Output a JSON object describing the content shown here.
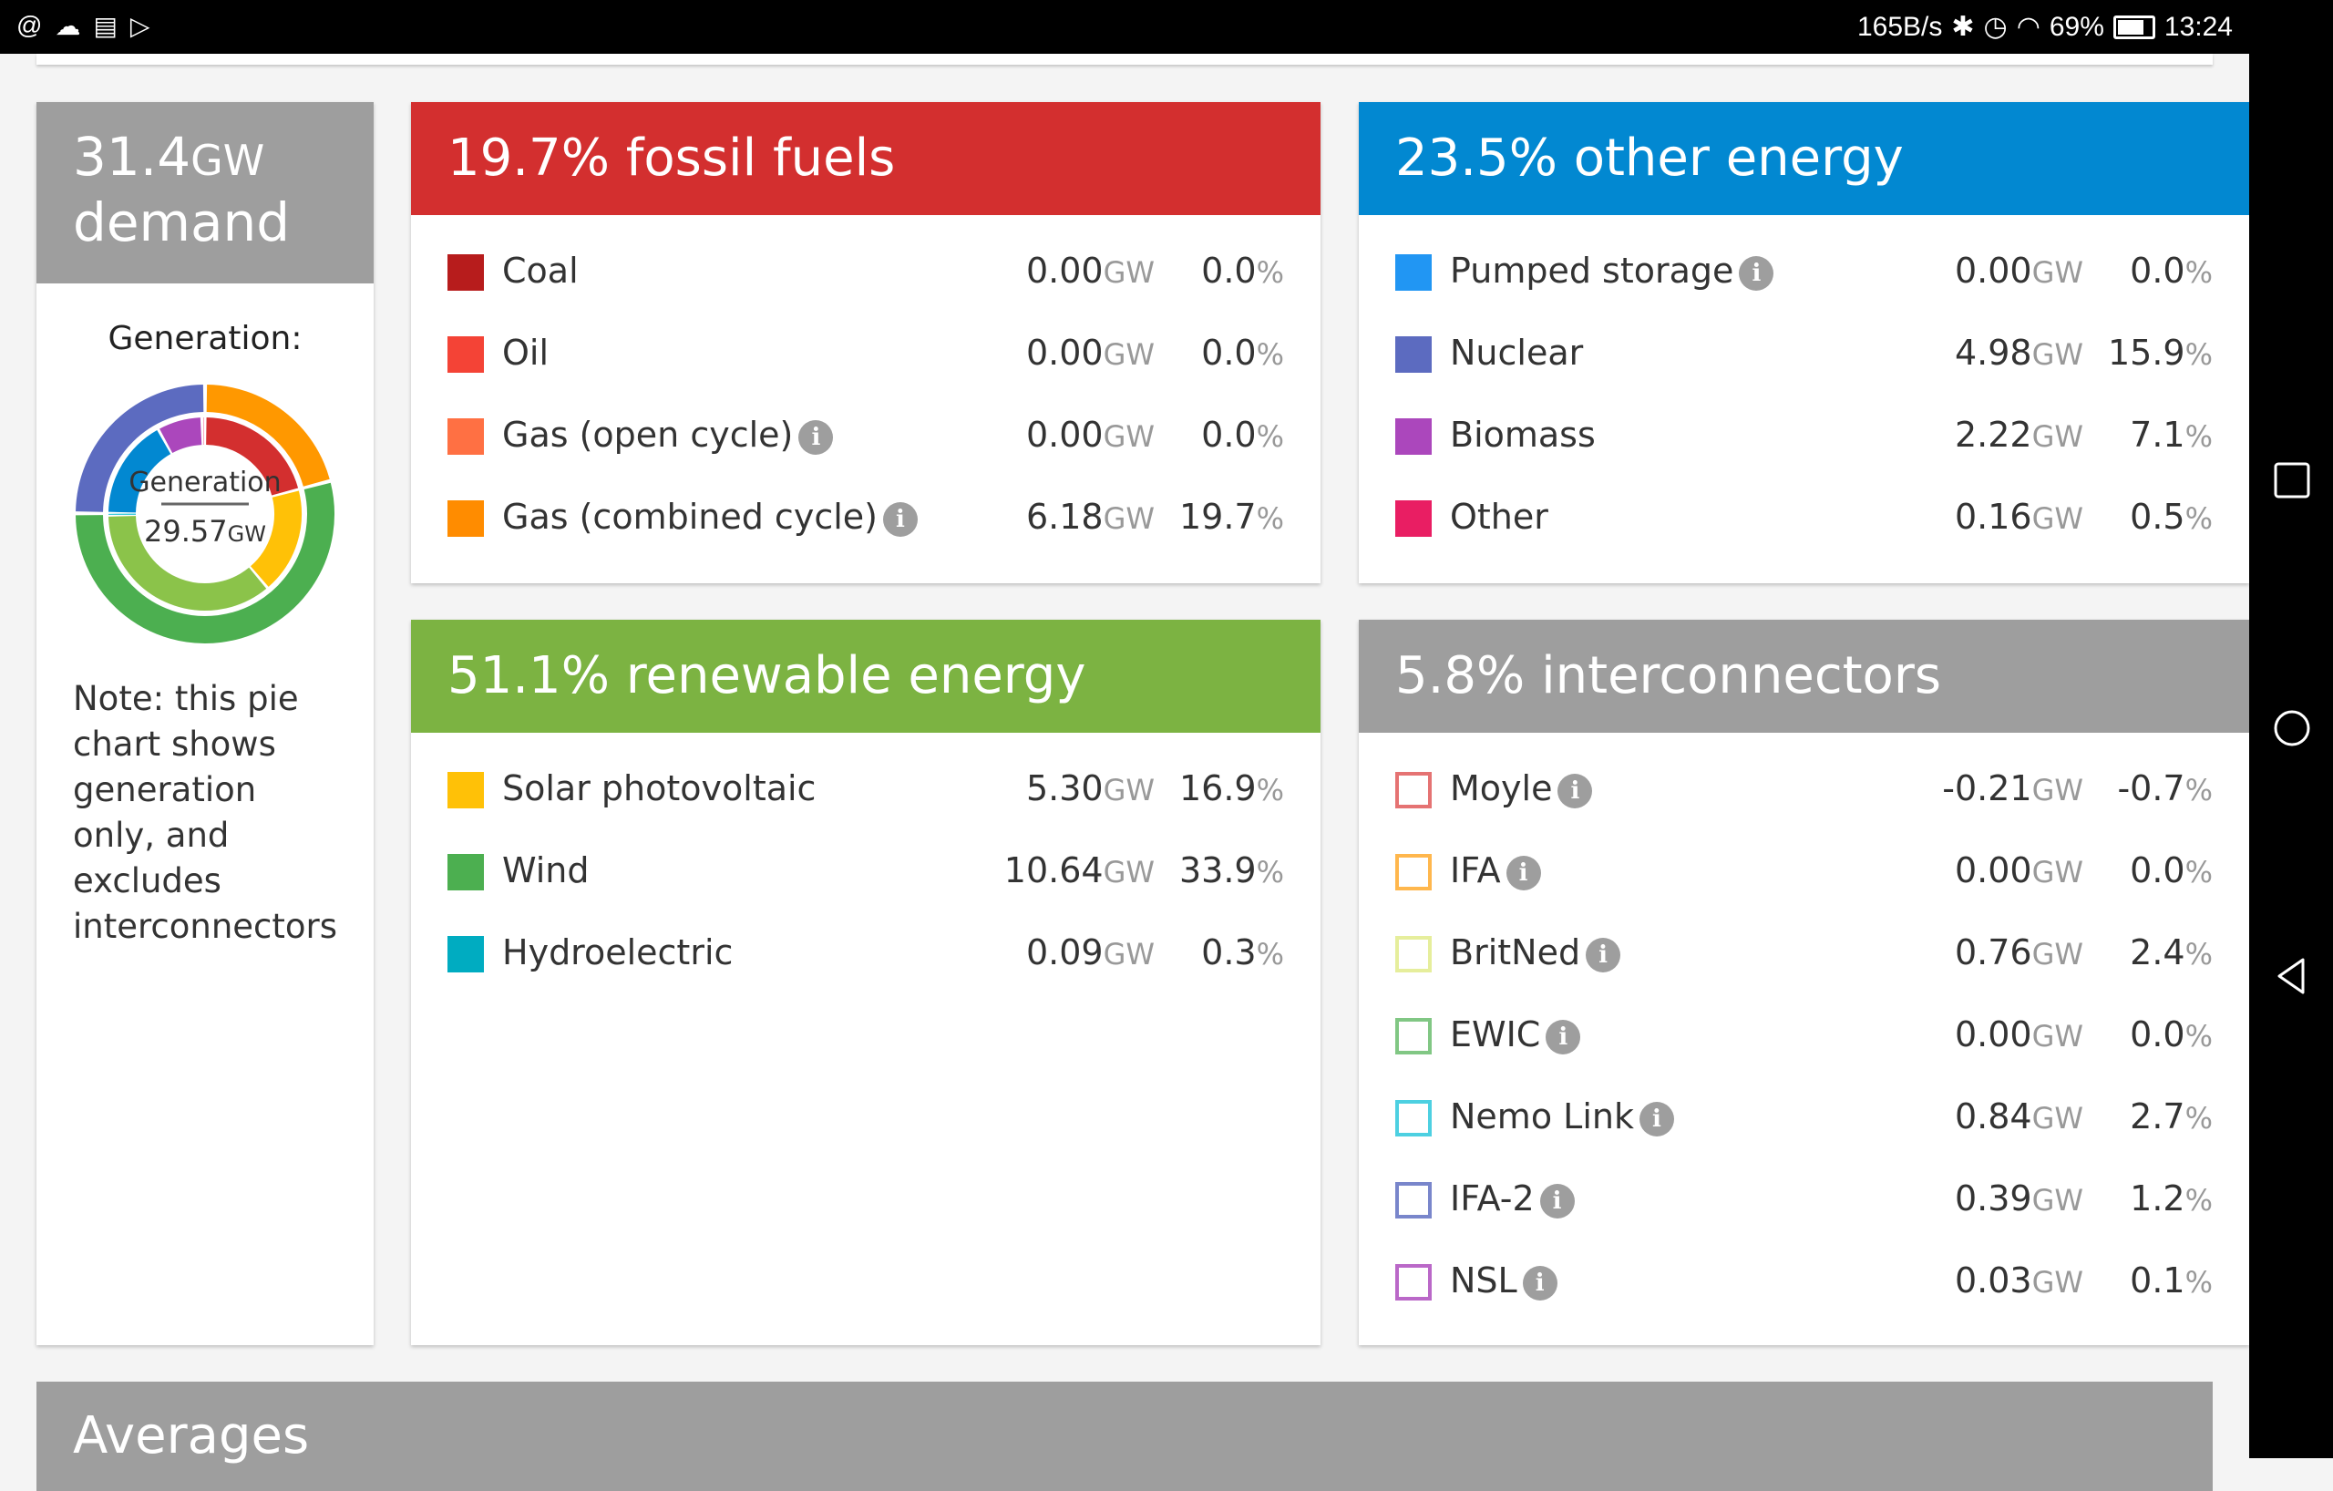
{
  "status_bar": {
    "left_icons": [
      "at-sign-icon",
      "cloud-icon",
      "calendar-icon",
      "play-store-icon"
    ],
    "speed": "165B/s",
    "battery": "69%",
    "battery_level": 0.69,
    "time": "13:24"
  },
  "demand": {
    "value": "31.4",
    "unit": "GW",
    "label": "demand",
    "generation_label": "Generation:",
    "donut_center_label": "Generation",
    "donut_center_value": "29.57",
    "donut_center_unit": "GW",
    "note": "Note: this pie chart shows generation only, and excludes interconnectors"
  },
  "chart_data": {
    "type": "pie",
    "outer_ring": [
      {
        "name": "fossil fuels",
        "value": 19.7,
        "color": "#ff9800"
      },
      {
        "name": "renewable energy",
        "value": 51.1,
        "color": "#4caf50"
      },
      {
        "name": "other energy",
        "value": 23.5,
        "color": "#5c6bc0"
      }
    ],
    "inner_ring": [
      {
        "name": "Gas (combined cycle)",
        "value": 6.18,
        "color": "#d32f2f"
      },
      {
        "name": "Solar photovoltaic",
        "value": 5.3,
        "color": "#ffc107"
      },
      {
        "name": "Wind",
        "value": 10.64,
        "color": "#8bc34a"
      },
      {
        "name": "Hydroelectric",
        "value": 0.09,
        "color": "#00bcd4"
      },
      {
        "name": "Nuclear",
        "value": 4.98,
        "color": "#0288d1"
      },
      {
        "name": "Biomass",
        "value": 2.22,
        "color": "#ab47bc"
      },
      {
        "name": "Other",
        "value": 0.16,
        "color": "#e91e63"
      }
    ]
  },
  "fossil": {
    "title": "19.7% fossil fuels",
    "color": "#d32f2f",
    "items": [
      {
        "label": "Coal",
        "gw": "0.00",
        "pct": "0.0",
        "color": "#b71c1c",
        "info": false
      },
      {
        "label": "Oil",
        "gw": "0.00",
        "pct": "0.0",
        "color": "#f44336",
        "info": false
      },
      {
        "label": "Gas (open cycle)",
        "gw": "0.00",
        "pct": "0.0",
        "color": "#ff7043",
        "info": true
      },
      {
        "label": "Gas (combined cycle)",
        "gw": "6.18",
        "pct": "19.7",
        "color": "#ff8c00",
        "info": true
      }
    ]
  },
  "other": {
    "title": "23.5% other energy",
    "color": "#0288d1",
    "items": [
      {
        "label": "Pumped storage",
        "gw": "0.00",
        "pct": "0.0",
        "color": "#2196f3",
        "info": true
      },
      {
        "label": "Nuclear",
        "gw": "4.98",
        "pct": "15.9",
        "color": "#5c6bc0",
        "info": false
      },
      {
        "label": "Biomass",
        "gw": "2.22",
        "pct": "7.1",
        "color": "#ab47bc",
        "info": false
      },
      {
        "label": "Other",
        "gw": "0.16",
        "pct": "0.5",
        "color": "#e91e63",
        "info": false
      }
    ]
  },
  "renewable": {
    "title": "51.1% renewable energy",
    "color": "#7cb342",
    "items": [
      {
        "label": "Solar photovoltaic",
        "gw": "5.30",
        "pct": "16.9",
        "color": "#ffc107",
        "info": false
      },
      {
        "label": "Wind",
        "gw": "10.64",
        "pct": "33.9",
        "color": "#4caf50",
        "info": false
      },
      {
        "label": "Hydroelectric",
        "gw": "0.09",
        "pct": "0.3",
        "color": "#00acc1",
        "info": false
      }
    ]
  },
  "interconnectors": {
    "title": "5.8% interconnectors",
    "color": "#9e9e9e",
    "items": [
      {
        "label": "Moyle",
        "gw": "-0.21",
        "pct": "-0.7",
        "color": "#e57373",
        "info": true,
        "outline": true
      },
      {
        "label": "IFA",
        "gw": "0.00",
        "pct": "0.0",
        "color": "#ffb74d",
        "info": true,
        "outline": true
      },
      {
        "label": "BritNed",
        "gw": "0.76",
        "pct": "2.4",
        "color": "#e6ee9c",
        "info": true,
        "outline": true
      },
      {
        "label": "EWIC",
        "gw": "0.00",
        "pct": "0.0",
        "color": "#81c784",
        "info": true,
        "outline": true
      },
      {
        "label": "Nemo Link",
        "gw": "0.84",
        "pct": "2.7",
        "color": "#4dd0e1",
        "info": true,
        "outline": true
      },
      {
        "label": "IFA-2",
        "gw": "0.39",
        "pct": "1.2",
        "color": "#7986cb",
        "info": true,
        "outline": true
      },
      {
        "label": "NSL",
        "gw": "0.03",
        "pct": "0.1",
        "color": "#ba68c8",
        "info": true,
        "outline": true
      }
    ]
  },
  "units": {
    "gw": "GW",
    "pct": "%",
    "info_glyph": "i"
  },
  "averages": {
    "title": "Averages"
  },
  "nav": {
    "icons": [
      "recent-apps-icon",
      "home-icon",
      "back-icon"
    ]
  }
}
